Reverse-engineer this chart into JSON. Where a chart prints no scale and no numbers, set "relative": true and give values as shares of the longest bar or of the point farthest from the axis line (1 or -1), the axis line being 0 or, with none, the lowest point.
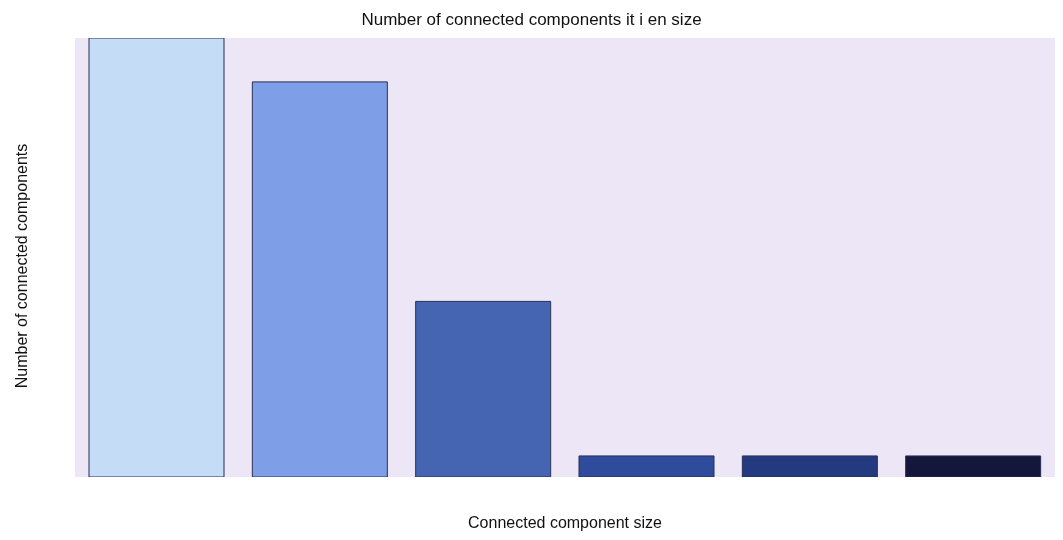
{
  "chart_data": {
    "type": "bar",
    "title": "Number of connected components it i en size",
    "xlabel": "Connected component size",
    "ylabel": "Number of connected components",
    "categories": [
      null,
      null,
      null,
      null,
      null,
      null
    ],
    "values": [
      1,
      0.9,
      0.4,
      0.048,
      0.048,
      0.048
    ],
    "colors": [
      "#c4dcf6",
      "#7e9fe8",
      "#4565b2",
      "#2f4b9c",
      "#233a80",
      "#15173a"
    ],
    "relative": true
  }
}
